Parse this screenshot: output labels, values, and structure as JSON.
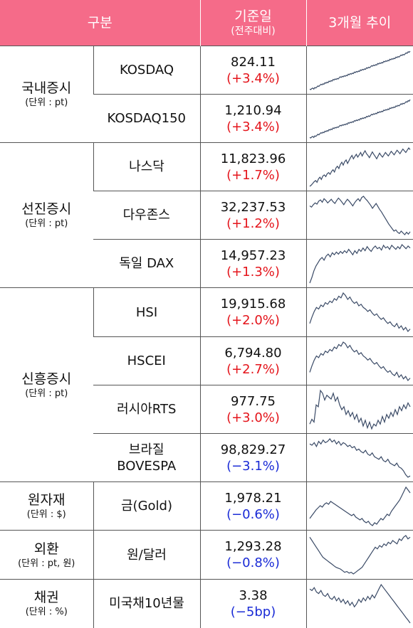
{
  "header": {
    "category": "구분",
    "base_date": "기준일",
    "base_date_sub": "(전주대비)",
    "trend": "3개월 추이"
  },
  "groups": [
    {
      "name": "국내증시",
      "unit": "(단위 : pt)",
      "rows": [
        {
          "name": "KOSDAQ",
          "value": "824.11",
          "change": "(+3.4%)",
          "dir": "up",
          "trend": [
            12,
            11,
            13,
            14,
            12,
            15,
            14,
            16,
            18,
            17,
            19,
            21,
            20,
            22,
            21,
            24,
            23,
            25,
            24,
            27,
            26,
            28,
            27,
            30,
            29,
            31,
            30,
            32,
            31,
            33,
            35,
            34,
            36,
            35,
            37,
            36,
            38,
            37,
            40,
            39,
            41,
            40,
            42,
            41,
            44,
            43,
            45,
            44,
            46,
            45,
            48,
            47,
            49,
            48,
            50,
            49,
            52,
            51,
            53,
            52,
            54,
            56,
            55,
            57,
            56,
            58,
            57,
            60,
            59,
            61,
            60,
            62,
            61,
            64,
            63,
            65,
            64,
            66,
            65,
            68,
            67,
            69,
            68,
            70,
            69,
            72,
            71,
            73,
            72,
            74,
            76,
            75,
            77,
            76,
            78,
            80,
            79,
            82,
            81,
            83
          ]
        },
        {
          "name": "KOSDAQ150",
          "value": "1,210.94",
          "change": "(+3.4%)",
          "dir": "up",
          "trend": [
            10,
            9,
            11,
            12,
            10,
            13,
            12,
            14,
            16,
            15,
            17,
            19,
            18,
            20,
            19,
            22,
            21,
            23,
            22,
            25,
            24,
            26,
            25,
            28,
            27,
            29,
            28,
            30,
            29,
            31,
            33,
            32,
            34,
            33,
            35,
            34,
            36,
            35,
            38,
            37,
            39,
            38,
            40,
            39,
            42,
            41,
            43,
            42,
            44,
            43,
            46,
            45,
            47,
            46,
            48,
            47,
            50,
            49,
            51,
            50,
            52,
            54,
            53,
            55,
            54,
            56,
            55,
            58,
            57,
            59,
            58,
            60,
            59,
            62,
            61,
            63,
            62,
            64,
            63,
            66,
            65,
            67,
            66,
            68,
            67,
            70,
            69,
            71,
            70,
            72,
            74,
            73,
            75,
            74,
            76,
            78,
            77,
            80,
            79,
            82
          ]
        }
      ]
    },
    {
      "name": "선진증시",
      "unit": "(단위 : pt)",
      "rows": [
        {
          "name": "나스닥",
          "value": "11,823.96",
          "change": "(+1.7%)",
          "dir": "up",
          "trend": [
            20,
            22,
            25,
            28,
            30,
            27,
            33,
            36,
            32,
            38,
            40,
            37,
            42,
            44,
            41,
            46,
            49,
            45,
            52,
            55,
            51,
            58,
            62,
            57,
            63,
            66,
            60,
            65,
            70,
            74,
            68,
            72,
            76,
            71,
            75,
            79,
            73,
            78,
            82,
            77,
            74,
            70,
            75,
            80,
            76,
            72,
            68,
            73,
            78,
            74,
            71,
            75,
            79,
            76,
            73,
            77,
            81,
            78,
            75,
            79,
            83,
            80,
            77,
            81,
            85,
            82,
            79,
            83,
            87,
            84
          ]
        },
        {
          "name": "다우존스",
          "value": "32,237.53",
          "change": "(+1.2%)",
          "dir": "up",
          "trend": [
            70,
            68,
            72,
            75,
            73,
            78,
            80,
            76,
            82,
            79,
            75,
            78,
            81,
            77,
            74,
            79,
            83,
            80,
            76,
            72,
            77,
            81,
            78,
            74,
            70,
            75,
            79,
            82,
            78,
            84,
            86,
            82,
            79,
            75,
            71,
            66,
            70,
            74,
            69,
            64,
            60,
            55,
            50,
            45,
            40,
            36,
            32,
            28,
            30,
            26,
            24,
            28,
            25,
            22,
            26,
            23,
            27
          ]
        },
        {
          "name": "독일 DAX",
          "value": "14,957.23",
          "change": "(+1.3%)",
          "dir": "up",
          "trend": [
            20,
            28,
            38,
            45,
            50,
            55,
            58,
            54,
            60,
            63,
            59,
            65,
            62,
            66,
            63,
            67,
            64,
            68,
            65,
            70,
            66,
            62,
            68,
            64,
            70,
            67,
            72,
            68,
            74,
            70,
            67,
            72,
            75,
            71,
            73,
            69,
            76,
            72,
            74,
            70,
            76,
            73,
            70,
            74,
            71,
            77,
            74,
            71,
            75,
            72
          ]
        }
      ]
    },
    {
      "name": "신흥증시",
      "unit": "(단위 : pt)",
      "rows": [
        {
          "name": "HSI",
          "value": "19,915.68",
          "change": "(+2.0%)",
          "dir": "up",
          "trend": [
            40,
            48,
            55,
            60,
            58,
            63,
            61,
            66,
            64,
            68,
            66,
            71,
            69,
            74,
            72,
            78,
            75,
            70,
            73,
            68,
            65,
            67,
            62,
            64,
            60,
            58,
            55,
            57,
            53,
            50,
            52,
            48,
            45,
            47,
            43,
            40,
            42,
            38,
            36,
            40,
            34,
            37,
            32,
            35,
            30,
            33
          ]
        },
        {
          "name": "HSCEI",
          "value": "6,794.80",
          "change": "(+2.7%)",
          "dir": "up",
          "trend": [
            38,
            46,
            53,
            58,
            56,
            61,
            59,
            64,
            62,
            66,
            64,
            69,
            67,
            72,
            70,
            75,
            73,
            68,
            71,
            66,
            63,
            65,
            60,
            62,
            58,
            56,
            53,
            55,
            51,
            48,
            50,
            46,
            43,
            45,
            41,
            38,
            40,
            36,
            34,
            38,
            32,
            35,
            30,
            33,
            28,
            31
          ]
        },
        {
          "name": "러시아RTS",
          "value": "977.75",
          "change": "(+3.0%)",
          "dir": "up",
          "trend": [
            40,
            45,
            42,
            60,
            58,
            75,
            72,
            65,
            70,
            68,
            66,
            72,
            64,
            68,
            60,
            55,
            58,
            50,
            54,
            48,
            52,
            45,
            50,
            42,
            46,
            38,
            44,
            36,
            42,
            35,
            40,
            38,
            44,
            40,
            48,
            42,
            50,
            46,
            52,
            48,
            55,
            50,
            58,
            54,
            60,
            56,
            62,
            58
          ]
        },
        {
          "name": "브라질\nBOVESPA",
          "value": "98,829.27",
          "change": "(−3.1%)",
          "dir": "down",
          "trend": [
            72,
            70,
            74,
            68,
            76,
            72,
            78,
            74,
            76,
            80,
            75,
            78,
            72,
            76,
            70,
            74,
            72,
            68,
            70,
            66,
            68,
            62,
            64,
            60,
            58,
            62,
            56,
            54,
            58,
            52,
            50,
            48,
            52,
            46,
            44,
            48,
            42,
            40,
            38,
            42,
            36,
            34,
            30,
            24,
            20,
            22
          ]
        }
      ]
    },
    {
      "name": "원자재",
      "unit": "(단위 : $)",
      "rows": [
        {
          "name": "금(Gold)",
          "value": "1,978.21",
          "change": "(−0.6%)",
          "dir": "down",
          "trend": [
            40,
            44,
            48,
            52,
            55,
            58,
            56,
            60,
            62,
            60,
            64,
            62,
            60,
            58,
            56,
            54,
            52,
            50,
            48,
            46,
            44,
            46,
            42,
            40,
            38,
            40,
            36,
            34,
            36,
            32,
            30,
            34,
            32,
            36,
            40,
            38,
            42,
            46,
            44,
            50,
            54,
            58,
            62,
            66,
            72,
            78,
            84,
            80,
            76
          ]
        }
      ]
    },
    {
      "name": "외환",
      "unit": "(단위 : pt, 원)",
      "rows": [
        {
          "name": "원/달러",
          "value": "1,293.28",
          "change": "(−0.8%)",
          "dir": "down",
          "trend": [
            70,
            66,
            62,
            58,
            54,
            50,
            46,
            44,
            42,
            40,
            38,
            36,
            34,
            33,
            32,
            30,
            28,
            29,
            27,
            28,
            26,
            28,
            30,
            32,
            34,
            38,
            42,
            46,
            50,
            54,
            58,
            56,
            60,
            58,
            62,
            60,
            64,
            62,
            66,
            64,
            62,
            68,
            66,
            70,
            72,
            68,
            70
          ]
        }
      ]
    },
    {
      "name": "채권",
      "unit": "(단위 : %)",
      "rows": [
        {
          "name": "미국채10년물",
          "value": "3.38",
          "change": "(−5bp)",
          "dir": "down",
          "trend": [
            72,
            70,
            74,
            68,
            66,
            70,
            64,
            62,
            66,
            60,
            58,
            62,
            56,
            60,
            54,
            58,
            52,
            56,
            50,
            54,
            48,
            52,
            58,
            54,
            60,
            56,
            62,
            58,
            64,
            60,
            66,
            72,
            78,
            74,
            70,
            66,
            62,
            58,
            54,
            50,
            46,
            42,
            38,
            34,
            30,
            26
          ]
        }
      ]
    }
  ]
}
